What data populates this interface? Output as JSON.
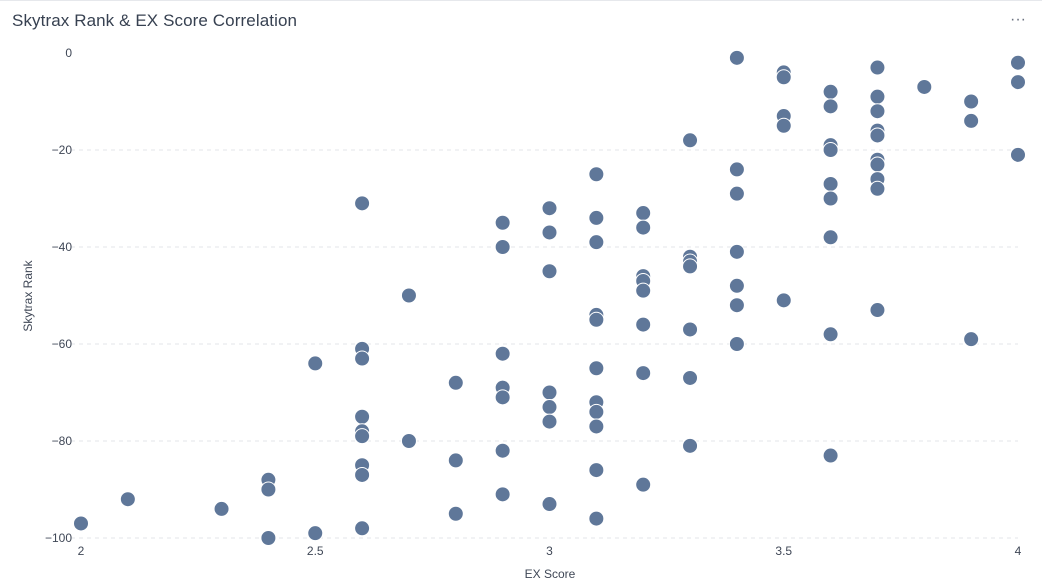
{
  "header": {
    "title": "Skytrax Rank & EX Score Correlation",
    "more_label": "···"
  },
  "colors": {
    "point": "#5f7799",
    "grid": "#e3e6ea"
  },
  "chart_data": {
    "type": "scatter",
    "title": "Skytrax Rank & EX Score Correlation",
    "xlabel": "EX Score",
    "ylabel": "Skytrax Rank",
    "xlim": [
      2,
      4
    ],
    "ylim": [
      -100,
      0
    ],
    "xticks": [
      "2",
      "2.5",
      "3",
      "3.5",
      "4"
    ],
    "yticks": [
      "0",
      "−20",
      "−40",
      "−60",
      "−80",
      "−100"
    ],
    "grid": "horizontal",
    "points": [
      [
        2,
        -97
      ],
      [
        2.1,
        -92
      ],
      [
        2.3,
        -94
      ],
      [
        2.4,
        -88
      ],
      [
        2.4,
        -90
      ],
      [
        2.4,
        -100
      ],
      [
        2.5,
        -64
      ],
      [
        2.5,
        -99
      ],
      [
        2.6,
        -31
      ],
      [
        2.6,
        -61
      ],
      [
        2.6,
        -63
      ],
      [
        2.6,
        -75
      ],
      [
        2.6,
        -78
      ],
      [
        2.6,
        -79
      ],
      [
        2.6,
        -85
      ],
      [
        2.6,
        -87
      ],
      [
        2.6,
        -98
      ],
      [
        2.7,
        -50
      ],
      [
        2.7,
        -80
      ],
      [
        2.8,
        -68
      ],
      [
        2.8,
        -84
      ],
      [
        2.8,
        -95
      ],
      [
        2.9,
        -35
      ],
      [
        2.9,
        -40
      ],
      [
        2.9,
        -62
      ],
      [
        2.9,
        -69
      ],
      [
        2.9,
        -71
      ],
      [
        2.9,
        -82
      ],
      [
        2.9,
        -91
      ],
      [
        3,
        -32
      ],
      [
        3,
        -37
      ],
      [
        3,
        -45
      ],
      [
        3,
        -70
      ],
      [
        3,
        -73
      ],
      [
        3,
        -76
      ],
      [
        3,
        -93
      ],
      [
        3.1,
        -25
      ],
      [
        3.1,
        -34
      ],
      [
        3.1,
        -39
      ],
      [
        3.1,
        -54
      ],
      [
        3.1,
        -55
      ],
      [
        3.1,
        -65
      ],
      [
        3.1,
        -72
      ],
      [
        3.1,
        -74
      ],
      [
        3.1,
        -77
      ],
      [
        3.1,
        -86
      ],
      [
        3.1,
        -96
      ],
      [
        3.2,
        -33
      ],
      [
        3.2,
        -36
      ],
      [
        3.2,
        -46
      ],
      [
        3.2,
        -47
      ],
      [
        3.2,
        -49
      ],
      [
        3.2,
        -56
      ],
      [
        3.2,
        -66
      ],
      [
        3.2,
        -89
      ],
      [
        3.3,
        -18
      ],
      [
        3.3,
        -42
      ],
      [
        3.3,
        -43
      ],
      [
        3.3,
        -44
      ],
      [
        3.3,
        -57
      ],
      [
        3.3,
        -67
      ],
      [
        3.3,
        -81
      ],
      [
        3.4,
        -1
      ],
      [
        3.4,
        -24
      ],
      [
        3.4,
        -29
      ],
      [
        3.4,
        -41
      ],
      [
        3.4,
        -48
      ],
      [
        3.4,
        -52
      ],
      [
        3.4,
        -60
      ],
      [
        3.5,
        -4
      ],
      [
        3.5,
        -5
      ],
      [
        3.5,
        -13
      ],
      [
        3.5,
        -15
      ],
      [
        3.5,
        -51
      ],
      [
        3.6,
        -8
      ],
      [
        3.6,
        -11
      ],
      [
        3.6,
        -19
      ],
      [
        3.6,
        -20
      ],
      [
        3.6,
        -27
      ],
      [
        3.6,
        -30
      ],
      [
        3.6,
        -38
      ],
      [
        3.6,
        -58
      ],
      [
        3.6,
        -83
      ],
      [
        3.7,
        -3
      ],
      [
        3.7,
        -9
      ],
      [
        3.7,
        -12
      ],
      [
        3.7,
        -16
      ],
      [
        3.7,
        -17
      ],
      [
        3.7,
        -22
      ],
      [
        3.7,
        -23
      ],
      [
        3.7,
        -26
      ],
      [
        3.7,
        -28
      ],
      [
        3.7,
        -53
      ],
      [
        3.8,
        -7
      ],
      [
        3.9,
        -10
      ],
      [
        3.9,
        -14
      ],
      [
        3.9,
        -59
      ],
      [
        4,
        -2
      ],
      [
        4,
        -6
      ],
      [
        4,
        -21
      ]
    ]
  }
}
